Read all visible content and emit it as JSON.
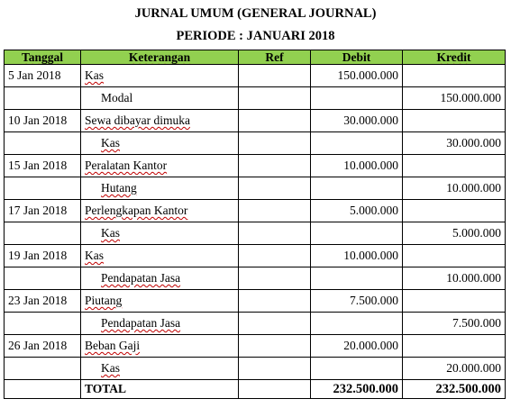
{
  "title": "JURNAL UMUM (GENERAL JOURNAL)",
  "period": "PERIODE : JANUARI 2018",
  "headers": {
    "tanggal": "Tanggal",
    "keterangan": "Keterangan",
    "ref": "Ref",
    "debit": "Debit",
    "kredit": "Kredit"
  },
  "rows": [
    {
      "tanggal": "5 Jan 2018",
      "keterangan": "Kas",
      "ref": "",
      "debit": "150.000.000",
      "kredit": ""
    },
    {
      "tanggal": "",
      "keterangan": "Modal",
      "ref": "",
      "debit": "",
      "kredit": "150.000.000"
    },
    {
      "tanggal": "10 Jan 2018",
      "keterangan": "Sewa dibayar dimuka",
      "ref": "",
      "debit": "30.000.000",
      "kredit": ""
    },
    {
      "tanggal": "",
      "keterangan": "Kas",
      "ref": "",
      "debit": "",
      "kredit": "30.000.000"
    },
    {
      "tanggal": "15 Jan 2018",
      "keterangan": "Peralatan Kantor",
      "ref": "",
      "debit": "10.000.000",
      "kredit": ""
    },
    {
      "tanggal": "",
      "keterangan": "Hutang",
      "ref": "",
      "debit": "",
      "kredit": "10.000.000"
    },
    {
      "tanggal": "17 Jan 2018",
      "keterangan": "Perlengkapan Kantor",
      "ref": "",
      "debit": "5.000.000",
      "kredit": ""
    },
    {
      "tanggal": "",
      "keterangan": "Kas",
      "ref": "",
      "debit": "",
      "kredit": "5.000.000"
    },
    {
      "tanggal": "19 Jan 2018",
      "keterangan": "Kas",
      "ref": "",
      "debit": "10.000.000",
      "kredit": ""
    },
    {
      "tanggal": "",
      "keterangan": "Pendapatan Jasa",
      "ref": "",
      "debit": "",
      "kredit": "10.000.000"
    },
    {
      "tanggal": "23 Jan 2018",
      "keterangan": "Piutang",
      "ref": "",
      "debit": "7.500.000",
      "kredit": ""
    },
    {
      "tanggal": "",
      "keterangan": "Pendapatan Jasa",
      "ref": "",
      "debit": "",
      "kredit": "7.500.000"
    },
    {
      "tanggal": "26 Jan 2018",
      "keterangan": "Beban Gaji",
      "ref": "",
      "debit": "20.000.000",
      "kredit": ""
    },
    {
      "tanggal": "",
      "keterangan": "Kas",
      "ref": "",
      "debit": "",
      "kredit": "20.000.000"
    }
  ],
  "total": {
    "label": "TOTAL",
    "debit": "232.500.000",
    "kredit": "232.500.000"
  },
  "colors": {
    "header_bg": "#92d050",
    "spellcheck": "#c00000"
  }
}
